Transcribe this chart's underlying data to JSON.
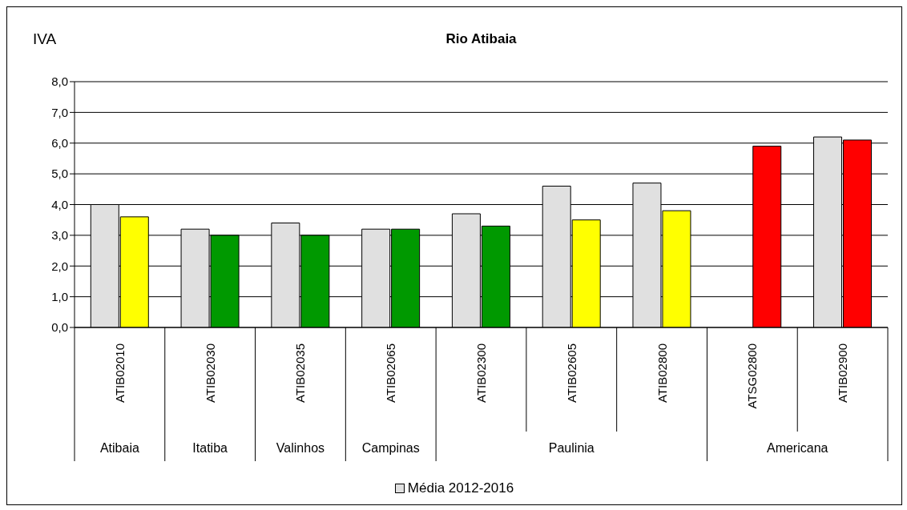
{
  "chart_data": {
    "type": "bar",
    "title": "Rio Atibaia",
    "ylabel": "IVA",
    "categories": [
      "ATIB02010",
      "ATIB02030",
      "ATIB02035",
      "ATIB02065",
      "ATIB02300",
      "ATIB02605",
      "ATIB02800",
      "ATSG02800",
      "ATIB02900"
    ],
    "series": [
      {
        "name": "Média 2012-2016",
        "color": "#e0e0e0",
        "values": [
          4.0,
          3.2,
          3.4,
          3.2,
          3.7,
          4.6,
          4.7,
          null,
          6.2
        ]
      },
      {
        "colors": [
          "#ffff00",
          "#009900",
          "#009900",
          "#009900",
          "#009900",
          "#ffff00",
          "#ffff00",
          "#ff0000",
          "#ff0000"
        ],
        "values": [
          3.6,
          3.0,
          3.0,
          3.2,
          3.3,
          3.5,
          3.8,
          5.9,
          6.1
        ]
      }
    ],
    "ylim": [
      0,
      8
    ],
    "yticks": [
      {
        "value": 0,
        "label": "0,0"
      },
      {
        "value": 1,
        "label": "1,0"
      },
      {
        "value": 2,
        "label": "2,0"
      },
      {
        "value": 3,
        "label": "3,0"
      },
      {
        "value": 4,
        "label": "4,0"
      },
      {
        "value": 5,
        "label": "5,0"
      },
      {
        "value": 6,
        "label": "6,0"
      },
      {
        "value": 7,
        "label": "7,0"
      },
      {
        "value": 8,
        "label": "8,0"
      }
    ],
    "grid": "y",
    "legend": "bottom",
    "annotations": [
      "Atibaia",
      "Itatiba",
      "Valinhos",
      "Campinas",
      "Paulinia",
      "Americana"
    ]
  }
}
